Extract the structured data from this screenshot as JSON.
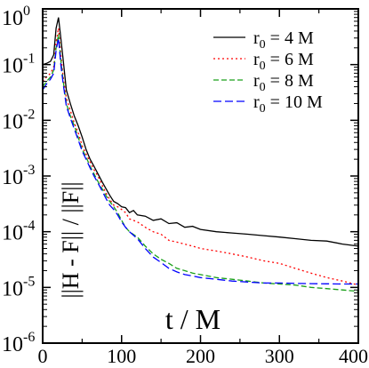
{
  "chart_data": {
    "type": "line",
    "title": "",
    "xlabel": "t / M",
    "ylabel": "||H - F|| / ||F||",
    "xlim": [
      0,
      400
    ],
    "ylim": [
      1e-06,
      1
    ],
    "yscale": "log",
    "grid": false,
    "legend_placement": "top-right",
    "x_ticks": [
      "0",
      "100",
      "200",
      "300",
      "400"
    ],
    "y_ticks": [
      {
        "base": "10",
        "exp": "-6"
      },
      {
        "base": "10",
        "exp": "-5"
      },
      {
        "base": "10",
        "exp": "-4"
      },
      {
        "base": "10",
        "exp": "-3"
      },
      {
        "base": "10",
        "exp": "-2"
      },
      {
        "base": "10",
        "exp": "-1"
      },
      {
        "base": "10",
        "exp": "0"
      }
    ],
    "series": [
      {
        "name": "r0 = 4 M",
        "label_main": "r",
        "label_sub": "0",
        "label_rest": " = 4 M",
        "color": "#000000",
        "dash": "solid",
        "x": [
          0,
          5,
          10,
          14,
          17,
          20,
          23,
          26,
          30,
          35,
          40,
          45,
          50,
          55,
          60,
          65,
          70,
          75,
          80,
          85,
          90,
          95,
          100,
          105,
          110,
          115,
          120,
          130,
          140,
          150,
          160,
          170,
          180,
          190,
          200,
          220,
          240,
          260,
          280,
          300,
          320,
          340,
          360,
          380,
          400
        ],
        "y": [
          0.1,
          0.105,
          0.115,
          0.15,
          0.45,
          0.7,
          0.3,
          0.12,
          0.035,
          0.02,
          0.012,
          0.008,
          0.005,
          0.003,
          0.002,
          0.0015,
          0.0011,
          0.0008,
          0.0006,
          0.00045,
          0.00035,
          0.00032,
          0.00028,
          0.00027,
          0.00022,
          0.00024,
          0.0002,
          0.00019,
          0.00016,
          0.00017,
          0.00014,
          0.000145,
          0.00012,
          0.000125,
          0.00011,
          0.0001,
          9.5e-05,
          9e-05,
          8.5e-05,
          8e-05,
          7.5e-05,
          7e-05,
          6.8e-05,
          6e-05,
          5.5e-05
        ]
      },
      {
        "name": "r0 = 6 M",
        "label_main": "r",
        "label_sub": "0",
        "label_rest": " = 6 M",
        "color": "#ff0000",
        "dash": "dotted",
        "x": [
          0,
          5,
          10,
          14,
          17,
          20,
          23,
          26,
          30,
          35,
          40,
          45,
          50,
          55,
          60,
          65,
          70,
          75,
          80,
          85,
          90,
          95,
          100,
          105,
          110,
          120,
          130,
          140,
          150,
          160,
          170,
          180,
          190,
          200,
          220,
          240,
          260,
          280,
          300,
          320,
          340,
          360,
          380,
          400
        ],
        "y": [
          0.05,
          0.06,
          0.07,
          0.09,
          0.25,
          0.45,
          0.15,
          0.06,
          0.025,
          0.015,
          0.009,
          0.006,
          0.0035,
          0.0025,
          0.0018,
          0.0013,
          0.001,
          0.0007,
          0.0005,
          0.00038,
          0.0003,
          0.00028,
          0.00025,
          0.00022,
          0.00017,
          0.00015,
          0.00012,
          0.0001,
          9e-05,
          7e-05,
          6.5e-05,
          6e-05,
          5.5e-05,
          5e-05,
          4.5e-05,
          4e-05,
          3.5e-05,
          3e-05,
          2.7e-05,
          2.2e-05,
          1.8e-05,
          1.5e-05,
          1.3e-05,
          1.1e-05
        ]
      },
      {
        "name": "r0 = 8 M",
        "label_main": "r",
        "label_sub": "0",
        "label_rest": " = 8 M",
        "color": "#1aa01a",
        "dash": "dashed",
        "x": [
          0,
          5,
          10,
          14,
          17,
          20,
          23,
          26,
          30,
          35,
          40,
          45,
          50,
          55,
          60,
          65,
          70,
          75,
          80,
          85,
          90,
          95,
          100,
          105,
          110,
          120,
          130,
          140,
          150,
          160,
          170,
          180,
          190,
          200,
          220,
          240,
          260,
          280,
          300,
          320,
          340,
          360,
          380,
          400
        ],
        "y": [
          0.04,
          0.05,
          0.06,
          0.08,
          0.2,
          0.35,
          0.12,
          0.05,
          0.02,
          0.012,
          0.008,
          0.005,
          0.003,
          0.0022,
          0.0015,
          0.0011,
          0.0008,
          0.0006,
          0.00045,
          0.00035,
          0.00028,
          0.00022,
          0.00016,
          0.00012,
          0.0001,
          8e-05,
          5.5e-05,
          4e-05,
          3.2e-05,
          2.7e-05,
          2.2e-05,
          2e-05,
          1.8e-05,
          1.7e-05,
          1.5e-05,
          1.4e-05,
          1.3e-05,
          1.2e-05,
          1.15e-05,
          1.1e-05,
          1e-05,
          9.5e-06,
          9e-06,
          8.5e-06
        ]
      },
      {
        "name": "r0 = 10 M",
        "label_main": "r",
        "label_sub": "0",
        "label_rest": " = 10 M",
        "color": "#0000ff",
        "dash": "longdash",
        "x": [
          0,
          5,
          10,
          14,
          17,
          20,
          23,
          26,
          30,
          35,
          40,
          45,
          50,
          55,
          60,
          65,
          70,
          75,
          80,
          85,
          90,
          95,
          100,
          105,
          110,
          120,
          130,
          140,
          150,
          160,
          170,
          180,
          190,
          200,
          220,
          240,
          260,
          280,
          300,
          320,
          340,
          360,
          380,
          400
        ],
        "y": [
          0.035,
          0.045,
          0.055,
          0.07,
          0.18,
          0.3,
          0.1,
          0.045,
          0.018,
          0.011,
          0.007,
          0.0045,
          0.0028,
          0.002,
          0.0014,
          0.001,
          0.00075,
          0.00055,
          0.0004,
          0.0003,
          0.00025,
          0.0002,
          0.00015,
          0.00012,
          0.0001,
          7.5e-05,
          5e-05,
          3.5e-05,
          2.8e-05,
          2.2e-05,
          1.9e-05,
          1.7e-05,
          1.6e-05,
          1.5e-05,
          1.4e-05,
          1.3e-05,
          1.25e-05,
          1.2e-05,
          1.2e-05,
          1.18e-05,
          1.17e-05,
          1.16e-05,
          1.15e-05,
          1.15e-05
        ]
      }
    ]
  }
}
